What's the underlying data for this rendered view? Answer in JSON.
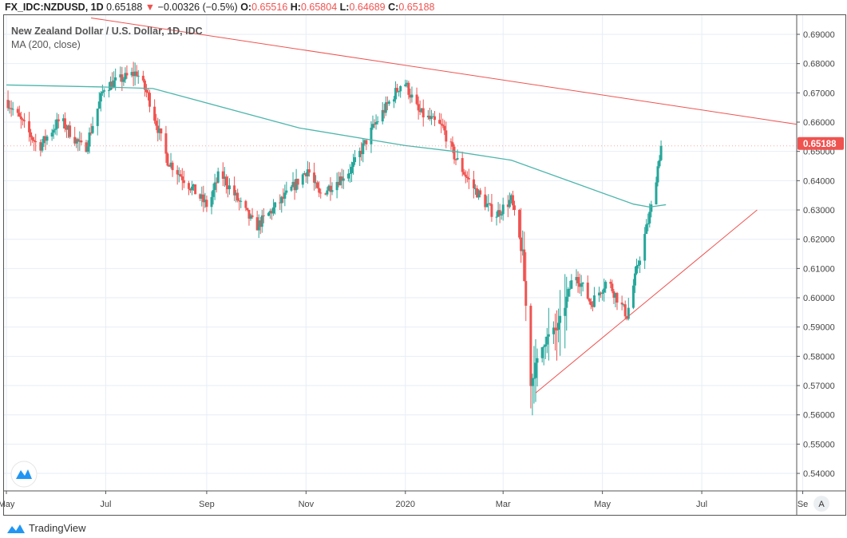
{
  "header": {
    "symbol": "FX_IDC:NZDUSD, 1D",
    "last": "0.65188",
    "change": "−0.00326 (−0.5%)",
    "o_label": "O:",
    "o": "0.65516",
    "h_label": "H:",
    "h": "0.65804",
    "l_label": "L:",
    "l": "0.64689",
    "c_label": "C:",
    "c": "0.65188"
  },
  "legend": {
    "title": "New Zealand Dollar / U.S. Dollar, 1D, IDC",
    "indicator": "MA (200, close)"
  },
  "price_badge": "0.65188",
  "axis_mode_button": "A",
  "brand": "TradingView",
  "colors": {
    "up": "#26a69a",
    "down": "#ef5350",
    "ma": "#4db6ac",
    "trend": "#ef5350",
    "grid": "#e6eef5"
  },
  "chart_data": {
    "type": "candlestick",
    "title": "New Zealand Dollar / U.S. Dollar, 1D, IDC",
    "ylim": [
      0.535,
      0.695
    ],
    "y_ticks": [
      "0.69000",
      "0.68000",
      "0.67000",
      "0.66000",
      "0.65000",
      "0.64000",
      "0.63000",
      "0.62000",
      "0.61000",
      "0.60000",
      "0.59000",
      "0.58000",
      "0.57000",
      "0.56000",
      "0.55000",
      "0.54000"
    ],
    "x_ticks": [
      {
        "label": "May",
        "day": 0
      },
      {
        "label": "Jul",
        "day": 61
      },
      {
        "label": "Sep",
        "day": 123
      },
      {
        "label": "Nov",
        "day": 184
      },
      {
        "label": "2020",
        "day": 245
      },
      {
        "label": "Mar",
        "day": 305
      },
      {
        "label": "May",
        "day": 366
      },
      {
        "label": "Jul",
        "day": 427
      },
      {
        "label": "Se",
        "day": 489
      }
    ],
    "close_path": [
      [
        0,
        0.6676
      ],
      [
        20,
        0.6513
      ],
      [
        33,
        0.661
      ],
      [
        48,
        0.65
      ],
      [
        60,
        0.672
      ],
      [
        80,
        0.677
      ],
      [
        87,
        0.669
      ],
      [
        99,
        0.647
      ],
      [
        124,
        0.631
      ],
      [
        131,
        0.643
      ],
      [
        153,
        0.624
      ],
      [
        172,
        0.635
      ],
      [
        185,
        0.644
      ],
      [
        192,
        0.635
      ],
      [
        212,
        0.644
      ],
      [
        226,
        0.659
      ],
      [
        244,
        0.6745
      ],
      [
        253,
        0.6635
      ],
      [
        268,
        0.658
      ],
      [
        275,
        0.6485
      ],
      [
        285,
        0.639
      ],
      [
        300,
        0.628
      ],
      [
        310,
        0.6335
      ],
      [
        317,
        0.6145
      ],
      [
        322,
        0.571
      ],
      [
        330,
        0.585
      ],
      [
        339,
        0.59
      ],
      [
        349,
        0.609
      ],
      [
        359,
        0.598
      ],
      [
        369,
        0.606
      ],
      [
        381,
        0.594
      ],
      [
        388,
        0.6117
      ],
      [
        396,
        0.6308
      ],
      [
        402,
        0.6519
      ]
    ],
    "ma200": [
      [
        0,
        0.6727
      ],
      [
        60,
        0.672
      ],
      [
        90,
        0.6715
      ],
      [
        180,
        0.658
      ],
      [
        245,
        0.652
      ],
      [
        275,
        0.65
      ],
      [
        310,
        0.647
      ],
      [
        350,
        0.639
      ],
      [
        385,
        0.632
      ],
      [
        395,
        0.631
      ],
      [
        405,
        0.6318
      ]
    ],
    "trendlines": [
      [
        [
          52,
          0.6956
        ],
        [
          485,
          0.6593
        ]
      ],
      [
        [
          325,
          0.5675
        ],
        [
          461,
          0.63
        ]
      ]
    ],
    "last_price": 0.65188
  }
}
